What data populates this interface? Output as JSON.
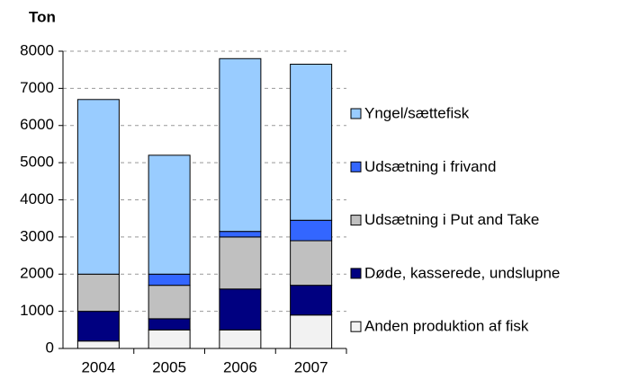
{
  "chart_data": {
    "type": "stacked-bar",
    "y_label": "Ton",
    "categories": [
      "2004",
      "2005",
      "2006",
      "2007"
    ],
    "series": [
      {
        "name": "Anden produktion af fisk",
        "color": "#f2f2f2",
        "values": [
          200,
          500,
          500,
          900
        ]
      },
      {
        "name": "Døde, kasserede, undslupne",
        "color": "#000080",
        "values": [
          800,
          300,
          1100,
          800
        ]
      },
      {
        "name": "Udsætning i Put and Take",
        "color": "#c0c0c0",
        "values": [
          1000,
          900,
          1400,
          1200
        ]
      },
      {
        "name": "Udsætning i frivand",
        "color": "#3366ff",
        "values": [
          0,
          300,
          150,
          550
        ]
      },
      {
        "name": "Yngel/sættefisk",
        "color": "#99ccff",
        "values": [
          4700,
          3200,
          4650,
          4200
        ]
      }
    ],
    "ylim": [
      0,
      8000
    ],
    "yticks": [
      0,
      1000,
      2000,
      3000,
      4000,
      5000,
      6000,
      7000,
      8000
    ],
    "grid": true
  }
}
